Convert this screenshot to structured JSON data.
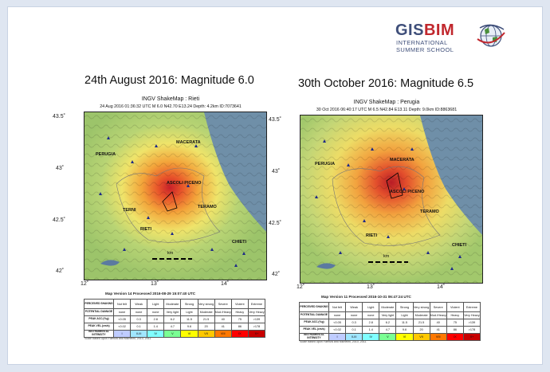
{
  "logo": {
    "title_a": "GISBIM",
    "line1": "INTERNATIONAL",
    "line2": "SUMMER SCHOOL"
  },
  "colors": {
    "gis": "#3f4f7a",
    "bim": "#c1272d",
    "sea": "#6f8fa8"
  },
  "legend_rows": {
    "intensity_labels": [
      "Not felt",
      "Weak",
      "Light",
      "Moderate",
      "Strong",
      "Very strong",
      "Severe",
      "Violent",
      "Extreme"
    ],
    "damage": [
      "none",
      "none",
      "none",
      "Very light",
      "Light",
      "Moderate",
      "Mod./Heavy",
      "Heavy",
      "Very Heavy"
    ],
    "pga": [
      "<0.05",
      "0.3",
      "2.8",
      "6.2",
      "11.5",
      "21.5",
      "40",
      "75",
      ">139"
    ],
    "pgv": [
      "<0.02",
      "0.1",
      "1.4",
      "4.7",
      "9.6",
      "20",
      "41",
      "86",
      ">178"
    ],
    "intensity": [
      "I",
      "II-III",
      "IV",
      "V",
      "VI",
      "VII",
      "VIII",
      "IX",
      "X+"
    ],
    "intensity_colors": [
      "#ffffff",
      "#bfccff",
      "#a0e6ff",
      "#80ffff",
      "#7aff93",
      "#ffff00",
      "#ffc800",
      "#ff7800",
      "#ff0000",
      "#c80000"
    ],
    "h_perceived": "PERCEIVED SHAKING",
    "h_damage": "POTENTIAL DAMAGE",
    "h_pga": "PEAK ACC.(%g)",
    "h_pgv": "PEAK VEL.(cm/s)",
    "h_int": "INSTRUMENTAL INTENSITY"
  },
  "maps": [
    {
      "heading": "24th August 2016: Magnitude 6.0",
      "title": "INGV ShakeMap : Rieti",
      "subtitle": "24 Aug 2016 01:36:32 UTC   M 6.0   N42.70 E13.24   Depth: 4.2km   ID:7073641",
      "lat_ticks": [
        "43.5˚",
        "43˚",
        "42.5˚",
        "42˚"
      ],
      "lon_ticks": [
        "12˚",
        "13˚",
        "14˚"
      ],
      "cities": [
        "MACERATA",
        "PERUGIA",
        "ASCOLI PICENO",
        "TERAMO",
        "TERNI",
        "RIETI",
        "CHIETI"
      ],
      "scale_label": "km",
      "version": "Map Version 14 Processed 2016-08-29 15:07:40 UTC",
      "credit": "Scale based upon Faenza and Michelini, 2010, 2011"
    },
    {
      "heading": "30th October 2016: Magnitude 6.5",
      "title": "INGV ShakeMap : Perugia",
      "subtitle": "30 Oct 2016 06:40:17 UTC   M 6.5   N42.84 E13.11   Depth: 9.0km   ID:8863681",
      "lat_ticks": [
        "43.5˚",
        "43˚",
        "42.5˚",
        "42˚"
      ],
      "lon_ticks": [
        "12˚",
        "13˚",
        "14˚"
      ],
      "cities": [
        "MACERATA",
        "PERUGIA",
        "ASCOLI PICENO",
        "TERAMO",
        "RIETI",
        "CHIETI"
      ],
      "scale_label": "km",
      "version": "Map Version 11 Processed 2016-10-31 06:47:24 UTC",
      "credit": "Scale based upon Faenza and Michelini, 2010, 2011"
    }
  ]
}
